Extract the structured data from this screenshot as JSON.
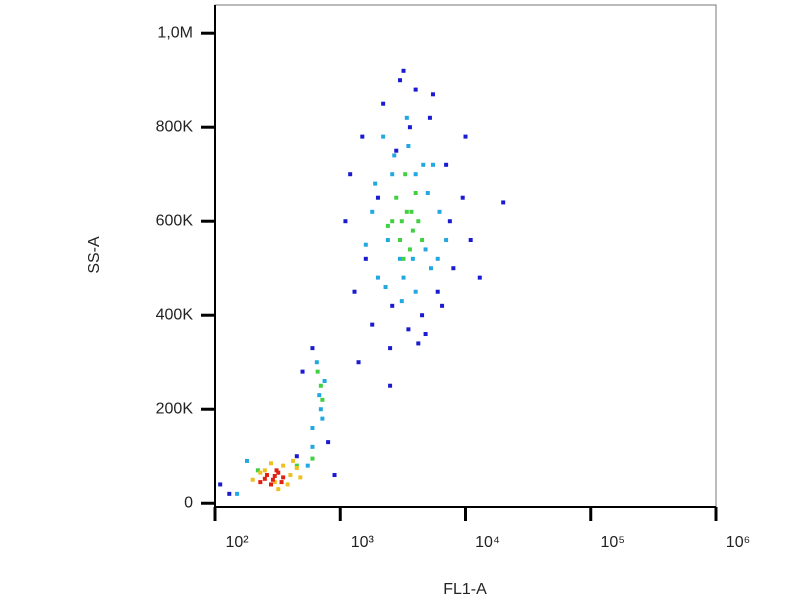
{
  "chart_data": {
    "type": "scatter",
    "x_label": "FL1-A",
    "y_label": "SS-A",
    "x_scale": "log",
    "xlim": [
      100,
      1000000
    ],
    "xticks": [
      {
        "value": 100,
        "label": "10²"
      },
      {
        "value": 1000,
        "label": "10³"
      },
      {
        "value": 10000,
        "label": "10⁴"
      },
      {
        "value": 100000,
        "label": "10⁵"
      },
      {
        "value": 1000000,
        "label": "10⁶"
      }
    ],
    "ylim": [
      -8000,
      1060000
    ],
    "yticks": [
      0,
      {
        "value": 200000,
        "label": "200K"
      },
      {
        "value": 400000,
        "label": "400K"
      },
      {
        "value": 600000,
        "label": "600K"
      },
      {
        "value": 800000,
        "label": "800K"
      },
      {
        "value": 1000000,
        "label": "1,0M"
      }
    ],
    "series": [
      {
        "color": "#1a1ad0",
        "x": [
          1100,
          1300,
          1500,
          1800,
          2200,
          2600,
          3000,
          3500,
          4000,
          4500,
          5200,
          6000,
          7000,
          8000,
          9500,
          11000,
          13000,
          1200,
          1600,
          2000,
          2500,
          3200,
          4200,
          5500,
          7500,
          10000,
          2800,
          3600,
          4800,
          6500,
          20000,
          1400,
          600,
          500,
          800,
          450,
          130,
          110,
          2500,
          900
        ],
        "y": [
          600000,
          450000,
          780000,
          380000,
          850000,
          420000,
          900000,
          370000,
          880000,
          400000,
          820000,
          450000,
          720000,
          500000,
          650000,
          560000,
          480000,
          700000,
          520000,
          650000,
          330000,
          920000,
          340000,
          870000,
          600000,
          780000,
          750000,
          800000,
          360000,
          420000,
          640000,
          300000,
          330000,
          280000,
          130000,
          100000,
          20000,
          40000,
          250000,
          60000
        ]
      },
      {
        "color": "#22a8e0",
        "x": [
          1600,
          1900,
          2300,
          2700,
          3100,
          3500,
          4000,
          4600,
          5300,
          6200,
          7000,
          2000,
          2600,
          3200,
          4000,
          5000,
          6000,
          1800,
          2400,
          3000,
          3800,
          4800,
          2200,
          3400,
          5500,
          650,
          700,
          750,
          600,
          680,
          720,
          180,
          550,
          150,
          600
        ],
        "y": [
          550000,
          680000,
          460000,
          740000,
          430000,
          760000,
          450000,
          720000,
          500000,
          620000,
          560000,
          480000,
          700000,
          480000,
          700000,
          660000,
          520000,
          620000,
          560000,
          520000,
          520000,
          540000,
          780000,
          820000,
          720000,
          300000,
          200000,
          260000,
          160000,
          230000,
          180000,
          90000,
          80000,
          20000,
          120000
        ]
      },
      {
        "color": "#40d040",
        "x": [
          2600,
          3000,
          3400,
          3800,
          4200,
          2800,
          3200,
          3600,
          4000,
          2400,
          3300,
          4500,
          3100,
          3700,
          700,
          720,
          660,
          450,
          220,
          600
        ],
        "y": [
          600000,
          560000,
          620000,
          580000,
          600000,
          650000,
          520000,
          540000,
          660000,
          590000,
          700000,
          560000,
          600000,
          620000,
          250000,
          220000,
          280000,
          80000,
          70000,
          95000
        ]
      },
      {
        "color": "#f0c020",
        "x": [
          200,
          250,
          300,
          350,
          400,
          450,
          280,
          380,
          230,
          480,
          320,
          420
        ],
        "y": [
          50000,
          70000,
          45000,
          80000,
          60000,
          75000,
          85000,
          40000,
          65000,
          55000,
          30000,
          90000
        ]
      },
      {
        "color": "#e02010",
        "x": [
          230,
          260,
          290,
          320,
          350,
          280,
          310,
          250,
          340,
          300
        ],
        "y": [
          45000,
          60000,
          50000,
          65000,
          55000,
          40000,
          70000,
          52000,
          45000,
          58000
        ]
      }
    ]
  }
}
